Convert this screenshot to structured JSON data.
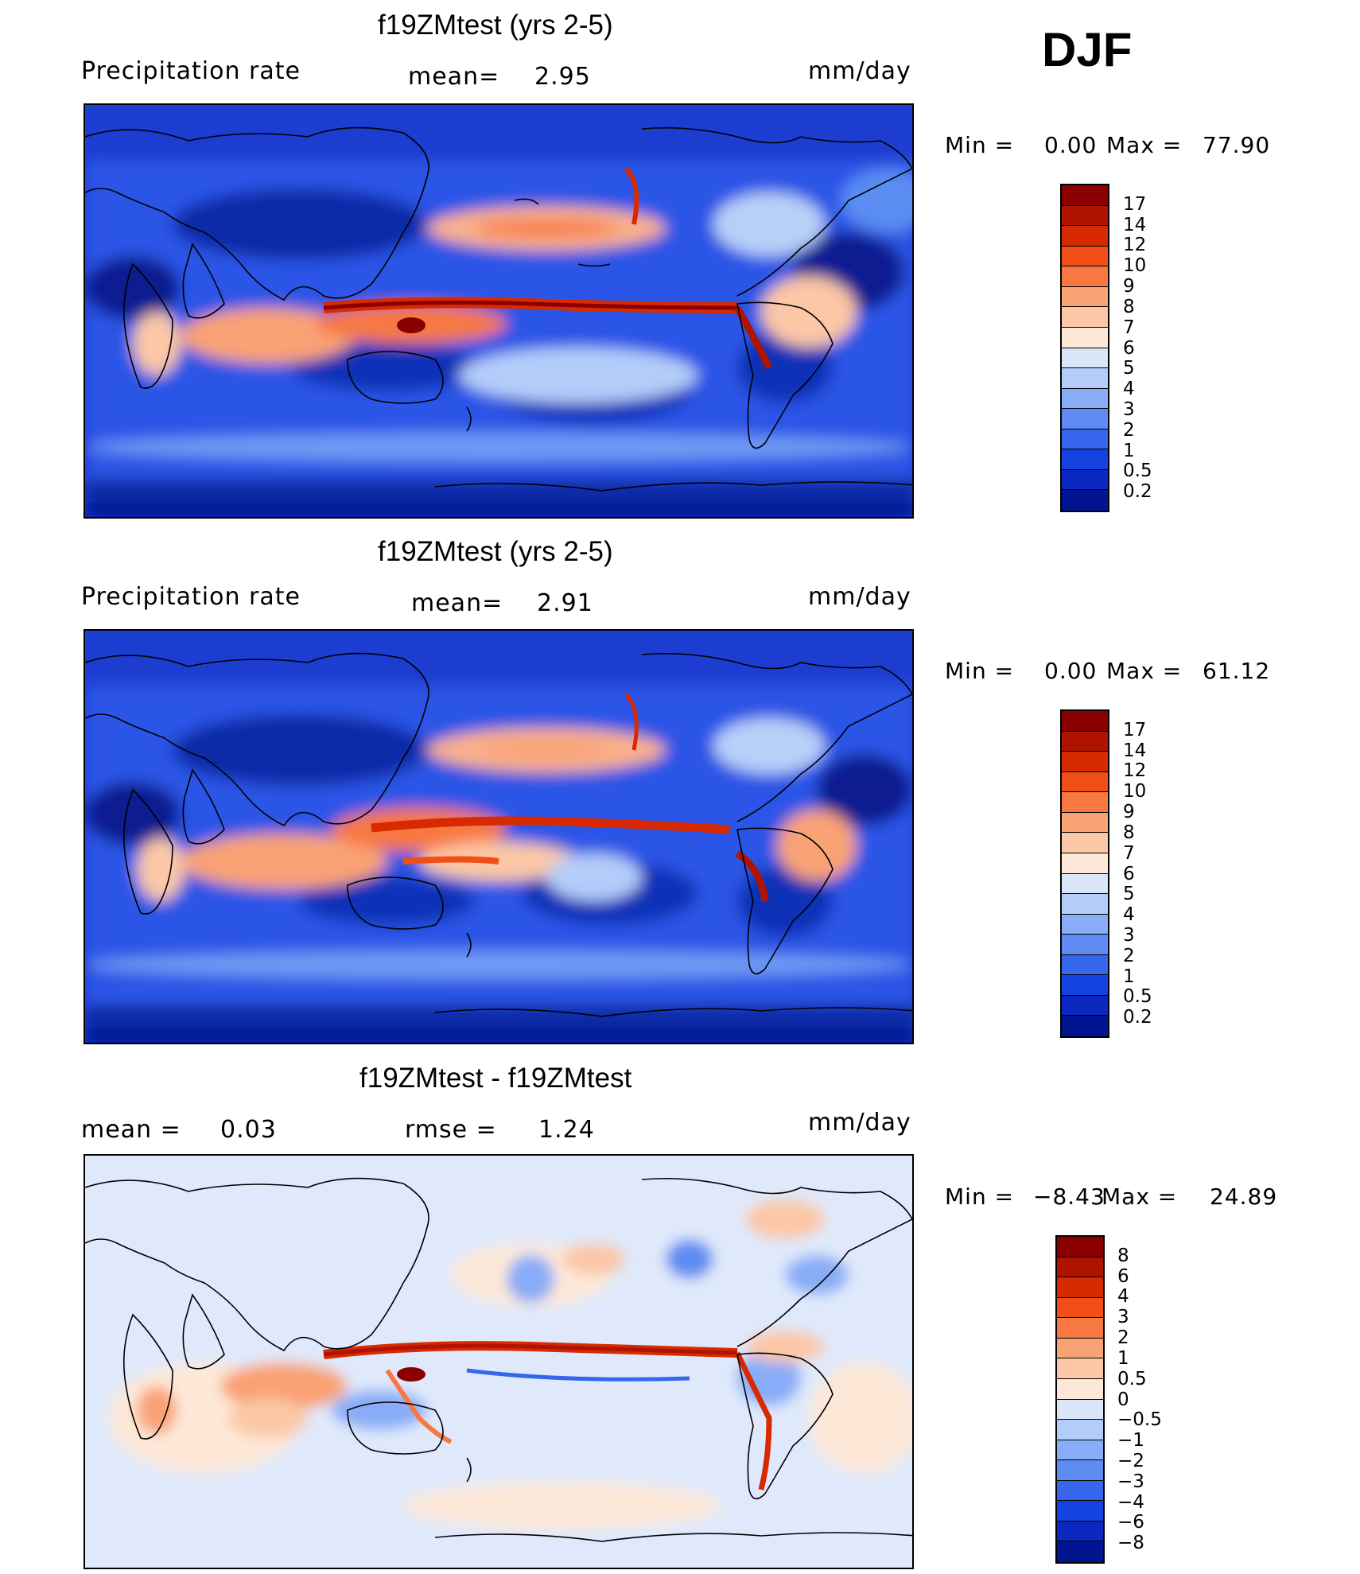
{
  "season": "DJF",
  "panels": [
    {
      "id": "panel-1",
      "title": "f19ZMtest (yrs 2-5)",
      "left_label": "Precipitation rate",
      "stat1_label": "mean=",
      "stat1_value": "2.95",
      "stat2_label": "",
      "stat2_value": "",
      "units": "mm/day",
      "min_label": "Min =",
      "min_value": "0.00",
      "max_label": "Max =",
      "max_value": "77.90",
      "colorbar_ticks": [
        "17",
        "14",
        "12",
        "10",
        "9",
        "8",
        "7",
        "6",
        "5",
        "4",
        "3",
        "2",
        "1",
        "0.5",
        "0.2"
      ],
      "colorbar_colors": [
        "#8a0000",
        "#b01400",
        "#d82a00",
        "#f24e18",
        "#f77840",
        "#f9a274",
        "#fbc7a6",
        "#fde8d8",
        "#d8e6f8",
        "#b3cdfa",
        "#88acf7",
        "#5e8cf2",
        "#3566ec",
        "#1443e0",
        "#0a28c0",
        "#001490"
      ]
    },
    {
      "id": "panel-2",
      "title": "f19ZMtest (yrs 2-5)",
      "left_label": "Precipitation rate",
      "stat1_label": "mean=",
      "stat1_value": "2.91",
      "stat2_label": "",
      "stat2_value": "",
      "units": "mm/day",
      "min_label": "Min =",
      "min_value": "0.00",
      "max_label": "Max =",
      "max_value": "61.12",
      "colorbar_ticks": [
        "17",
        "14",
        "12",
        "10",
        "9",
        "8",
        "7",
        "6",
        "5",
        "4",
        "3",
        "2",
        "1",
        "0.5",
        "0.2"
      ],
      "colorbar_colors": [
        "#8a0000",
        "#b01400",
        "#d82a00",
        "#f24e18",
        "#f77840",
        "#f9a274",
        "#fbc7a6",
        "#fde8d8",
        "#d8e6f8",
        "#b3cdfa",
        "#88acf7",
        "#5e8cf2",
        "#3566ec",
        "#1443e0",
        "#0a28c0",
        "#001490"
      ]
    },
    {
      "id": "panel-3",
      "title": "f19ZMtest - f19ZMtest",
      "left_label": "mean =",
      "stat1_label": "",
      "stat1_value": "0.03",
      "stat2_label": "rmse =",
      "stat2_value": "1.24",
      "units": "mm/day",
      "min_label": "Min =",
      "min_value": "−8.43",
      "max_label": "Max =",
      "max_value": "24.89",
      "colorbar_ticks": [
        "8",
        "6",
        "4",
        "3",
        "2",
        "1",
        "0.5",
        "0",
        "−0.5",
        "−1",
        "−2",
        "−3",
        "−4",
        "−6",
        "−8"
      ],
      "colorbar_colors": [
        "#8a0000",
        "#b01400",
        "#d82a00",
        "#f24e18",
        "#f77840",
        "#f9a274",
        "#fbc7a6",
        "#fde8d8",
        "#d8e6f8",
        "#b3cdfa",
        "#88acf7",
        "#5e8cf2",
        "#3566ec",
        "#1443e0",
        "#0a28c0",
        "#001490"
      ]
    }
  ]
}
